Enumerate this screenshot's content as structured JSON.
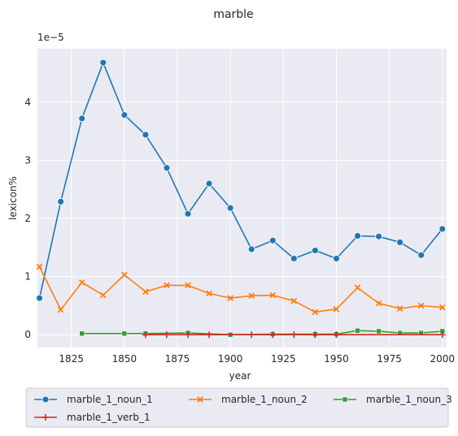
{
  "chart_data": {
    "type": "line",
    "title": "marble",
    "xlabel": "year",
    "ylabel": "lexicon%",
    "y_offset_label": "1e−5",
    "xlim": [
      1809,
      2002
    ],
    "ylim": [
      -0.22,
      4.92
    ],
    "x_ticks": [
      1825,
      1850,
      1875,
      1900,
      1925,
      1950,
      1975,
      2000
    ],
    "y_ticks": [
      0,
      1,
      2,
      3,
      4
    ],
    "grid": true,
    "legend_position": "bottom",
    "series": [
      {
        "name": "marble_1_noun_1",
        "color": "#1f77b4",
        "marker": "circle",
        "x": [
          1810,
          1820,
          1830,
          1840,
          1850,
          1860,
          1870,
          1880,
          1890,
          1900,
          1910,
          1920,
          1930,
          1940,
          1950,
          1960,
          1970,
          1980,
          1990,
          2000
        ],
        "values": [
          0.63,
          2.29,
          3.72,
          4.68,
          3.78,
          3.44,
          2.87,
          2.08,
          2.6,
          2.18,
          1.47,
          1.62,
          1.31,
          1.45,
          1.31,
          1.7,
          1.69,
          1.59,
          1.37,
          1.82
        ]
      },
      {
        "name": "marble_1_noun_2",
        "color": "#ff7f0e",
        "marker": "x",
        "x": [
          1810,
          1820,
          1830,
          1840,
          1850,
          1860,
          1870,
          1880,
          1890,
          1900,
          1910,
          1920,
          1930,
          1940,
          1950,
          1960,
          1970,
          1980,
          1990,
          2000
        ],
        "values": [
          1.17,
          0.43,
          0.9,
          0.68,
          1.03,
          0.74,
          0.85,
          0.85,
          0.71,
          0.63,
          0.67,
          0.68,
          0.58,
          0.39,
          0.44,
          0.81,
          0.54,
          0.45,
          0.5,
          0.47
        ]
      },
      {
        "name": "marble_1_noun_3",
        "color": "#2ca02c",
        "marker": "square",
        "x": [
          1830,
          1850,
          1860,
          1880,
          1900,
          1920,
          1940,
          1950,
          1960,
          1970,
          1980,
          1990,
          2000
        ],
        "values": [
          0.02,
          0.02,
          0.02,
          0.03,
          0.0,
          0.01,
          0.01,
          0.01,
          0.07,
          0.06,
          0.03,
          0.03,
          0.06
        ]
      },
      {
        "name": "marble_1_verb_1",
        "color": "#d62728",
        "marker": "plus",
        "x": [
          1860,
          1870,
          1880,
          1890,
          1910,
          1920,
          1930,
          1940,
          1950,
          2000
        ],
        "values": [
          0.0,
          0.0,
          0.0,
          0.0,
          0.0,
          0.0,
          0.0,
          0.0,
          0.0,
          0.0
        ]
      }
    ]
  }
}
